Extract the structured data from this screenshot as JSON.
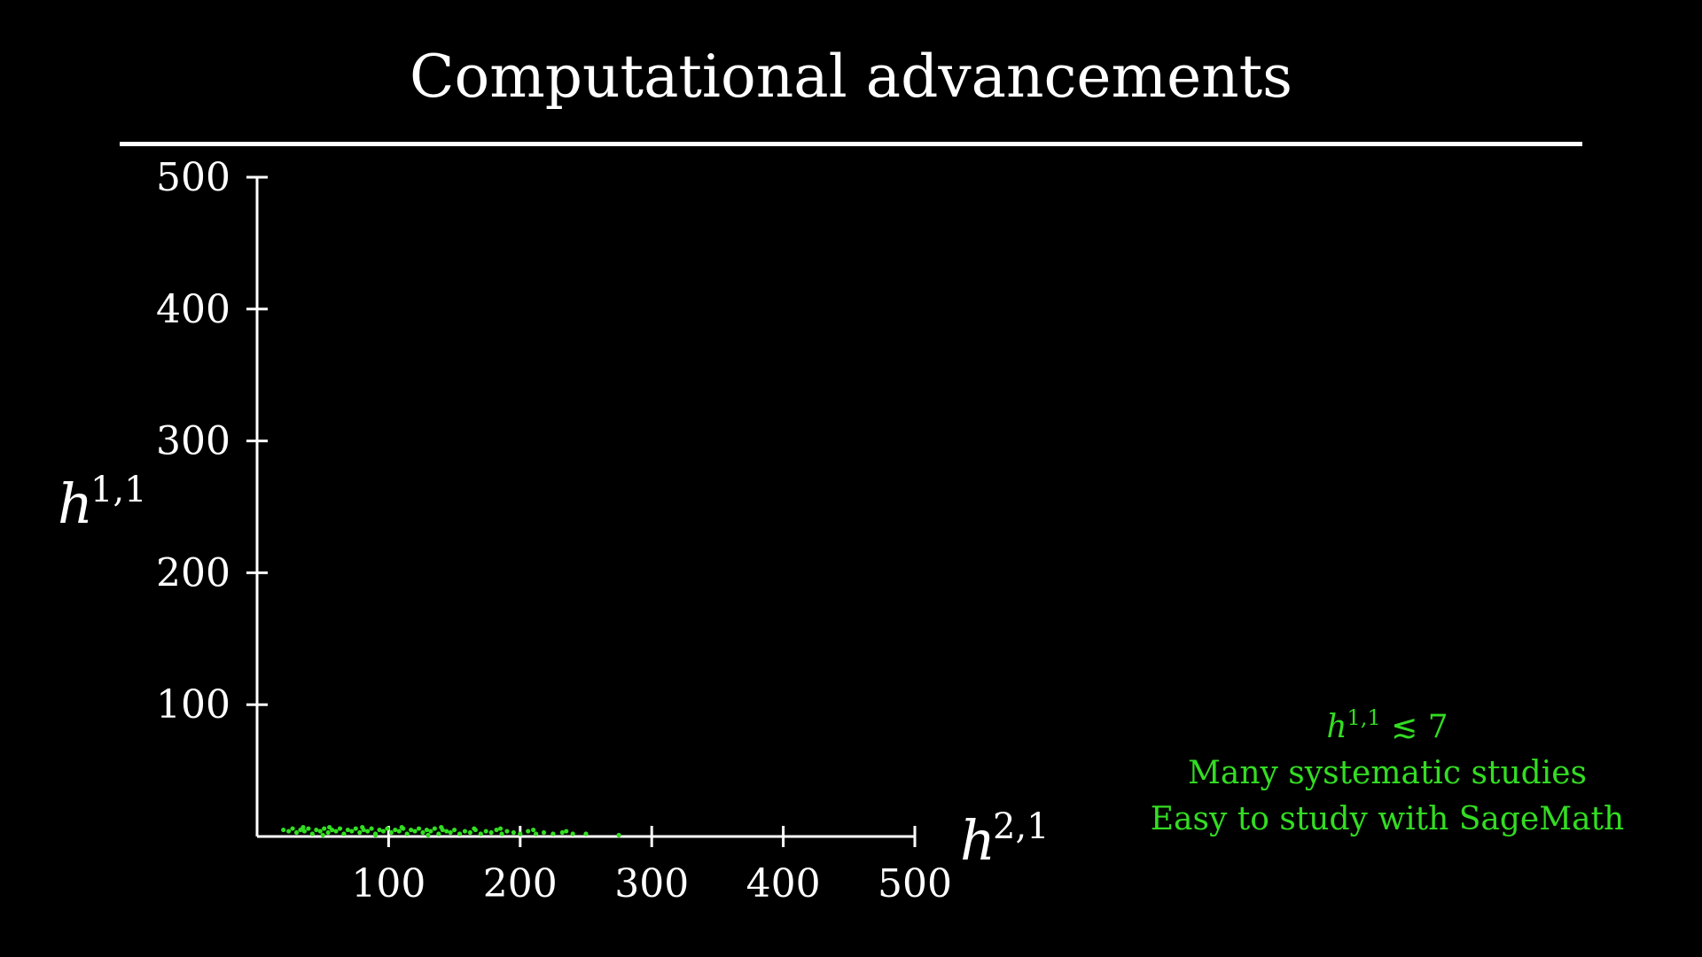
{
  "slide": {
    "title": "Computational advancements"
  },
  "annotation": {
    "bound_symbol": "h",
    "bound_superscript": "1,1",
    "bound_relation": "≲",
    "bound_value": "7",
    "line2": "Many systematic studies",
    "line3": "Easy to study with SageMath",
    "color": "#33dd22"
  },
  "chart_data": {
    "type": "scatter",
    "xlabel": "h",
    "xlabel_superscript": "2,1",
    "ylabel": "h",
    "ylabel_superscript": "1,1",
    "xlim": [
      0,
      500
    ],
    "ylim": [
      0,
      500
    ],
    "xticks": [
      100,
      200,
      300,
      400,
      500
    ],
    "yticks": [
      100,
      200,
      300,
      400,
      500
    ],
    "grid": false,
    "point_color": "#33dd22",
    "series": [
      {
        "points": [
          [
            20,
            5
          ],
          [
            24,
            4
          ],
          [
            27,
            6
          ],
          [
            30,
            3
          ],
          [
            33,
            5
          ],
          [
            36,
            4
          ],
          [
            39,
            6
          ],
          [
            42,
            2
          ],
          [
            45,
            5
          ],
          [
            48,
            4
          ],
          [
            51,
            6
          ],
          [
            54,
            3
          ],
          [
            57,
            5
          ],
          [
            60,
            4
          ],
          [
            63,
            6
          ],
          [
            66,
            2
          ],
          [
            69,
            5
          ],
          [
            72,
            4
          ],
          [
            75,
            6
          ],
          [
            78,
            3
          ],
          [
            81,
            5
          ],
          [
            84,
            4
          ],
          [
            87,
            6
          ],
          [
            90,
            2
          ],
          [
            93,
            5
          ],
          [
            96,
            4
          ],
          [
            99,
            6
          ],
          [
            102,
            3
          ],
          [
            105,
            5
          ],
          [
            108,
            4
          ],
          [
            111,
            6
          ],
          [
            114,
            2
          ],
          [
            117,
            5
          ],
          [
            120,
            4
          ],
          [
            123,
            6
          ],
          [
            126,
            3
          ],
          [
            129,
            5
          ],
          [
            132,
            4
          ],
          [
            135,
            6
          ],
          [
            138,
            2
          ],
          [
            141,
            5
          ],
          [
            144,
            4
          ],
          [
            147,
            3
          ],
          [
            150,
            5
          ],
          [
            154,
            2
          ],
          [
            158,
            4
          ],
          [
            162,
            3
          ],
          [
            166,
            5
          ],
          [
            170,
            2
          ],
          [
            174,
            4
          ],
          [
            178,
            3
          ],
          [
            182,
            5
          ],
          [
            186,
            2
          ],
          [
            190,
            4
          ],
          [
            195,
            3
          ],
          [
            200,
            2
          ],
          [
            206,
            4
          ],
          [
            212,
            2
          ],
          [
            218,
            3
          ],
          [
            225,
            2
          ],
          [
            232,
            3
          ],
          [
            240,
            2
          ],
          [
            250,
            2
          ],
          [
            275,
            1
          ],
          [
            35,
            7
          ],
          [
            55,
            7
          ],
          [
            80,
            7
          ],
          [
            110,
            7
          ],
          [
            140,
            7
          ],
          [
            165,
            6
          ],
          [
            50,
            1
          ],
          [
            90,
            1
          ],
          [
            130,
            1
          ],
          [
            185,
            6
          ],
          [
            210,
            5
          ],
          [
            235,
            4
          ]
        ]
      }
    ]
  }
}
